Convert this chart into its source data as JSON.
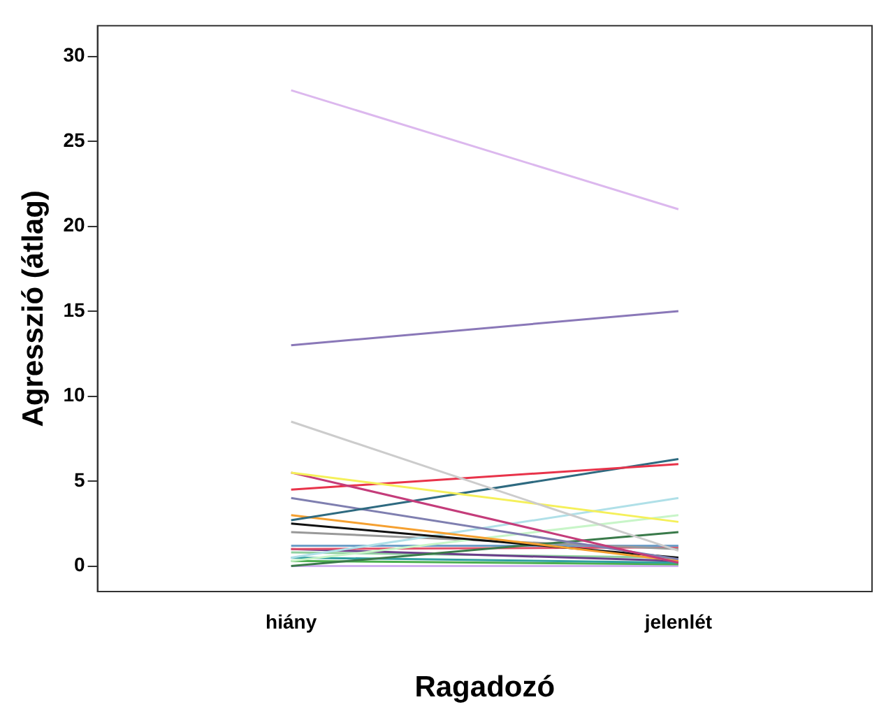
{
  "chart_data": {
    "type": "line",
    "xlabel": "Ragadozó",
    "ylabel": "Agresszió (átlag)",
    "categories": [
      "hiány",
      "jelenlét"
    ],
    "ylim": [
      -1.5,
      31.8
    ],
    "yticks": [
      0,
      5,
      10,
      15,
      20,
      25,
      30
    ],
    "grid": false,
    "legend": false,
    "marker": "none",
    "series": [
      {
        "color": "#dcb8ee",
        "values": [
          28,
          21
        ]
      },
      {
        "color": "#8a78b8",
        "values": [
          13,
          15
        ]
      },
      {
        "color": "#cccccc",
        "values": [
          8.5,
          0.9
        ]
      },
      {
        "color": "#f5f05a",
        "values": [
          5.5,
          2.6
        ]
      },
      {
        "color": "#c43c7a",
        "values": [
          5.5,
          0.2
        ]
      },
      {
        "color": "#e8334a",
        "values": [
          4.5,
          6
        ]
      },
      {
        "color": "#2e6a80",
        "values": [
          2.7,
          6.3
        ]
      },
      {
        "color": "#7f7fb0",
        "values": [
          4,
          0.4
        ]
      },
      {
        "color": "#f5a030",
        "values": [
          3,
          0.3
        ]
      },
      {
        "color": "#111111",
        "values": [
          2.5,
          0.5
        ]
      },
      {
        "color": "#b0e0e8",
        "values": [
          0.5,
          4
        ]
      },
      {
        "color": "#c8f5c8",
        "values": [
          0.3,
          3
        ]
      },
      {
        "color": "#3a7a4a",
        "values": [
          0,
          2
        ]
      },
      {
        "color": "#999999",
        "values": [
          2,
          1
        ]
      },
      {
        "color": "#6f9fc8",
        "values": [
          1.2,
          1.2
        ]
      },
      {
        "color": "#e0506a",
        "values": [
          1,
          1.1
        ]
      },
      {
        "color": "#6a3d8a",
        "values": [
          1,
          0.3
        ]
      },
      {
        "color": "#30a0a0",
        "values": [
          0.5,
          0.2
        ]
      },
      {
        "color": "#4caf50",
        "values": [
          0.3,
          0.1
        ]
      },
      {
        "color": "#90d0a0",
        "values": [
          0.8,
          0.5
        ]
      },
      {
        "color": "#d0b0f0",
        "values": [
          0,
          0
        ]
      }
    ]
  }
}
